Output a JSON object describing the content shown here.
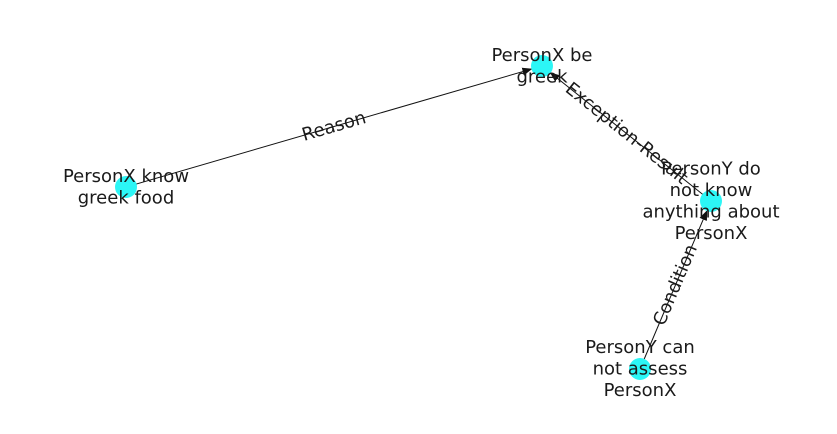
{
  "graph": {
    "node_color": "#2cf6f6",
    "edge_color": "#111111",
    "nodes": [
      {
        "id": "n1",
        "lines": [
          "PersonX be",
          "greek"
        ]
      },
      {
        "id": "n2",
        "lines": [
          "PersonX know",
          "greek food"
        ]
      },
      {
        "id": "n3",
        "lines": [
          "PersonY do",
          "not know",
          "anything about",
          "PersonX"
        ]
      },
      {
        "id": "n4",
        "lines": [
          "PersonY can",
          "not assess",
          "PersonX"
        ]
      }
    ],
    "edges": [
      {
        "from": "n2",
        "to": "n1",
        "label": "Reason"
      },
      {
        "from": "n3",
        "to": "n1",
        "label": "Exception-Result"
      },
      {
        "from": "n4",
        "to": "n3",
        "label": "Condition"
      }
    ]
  }
}
